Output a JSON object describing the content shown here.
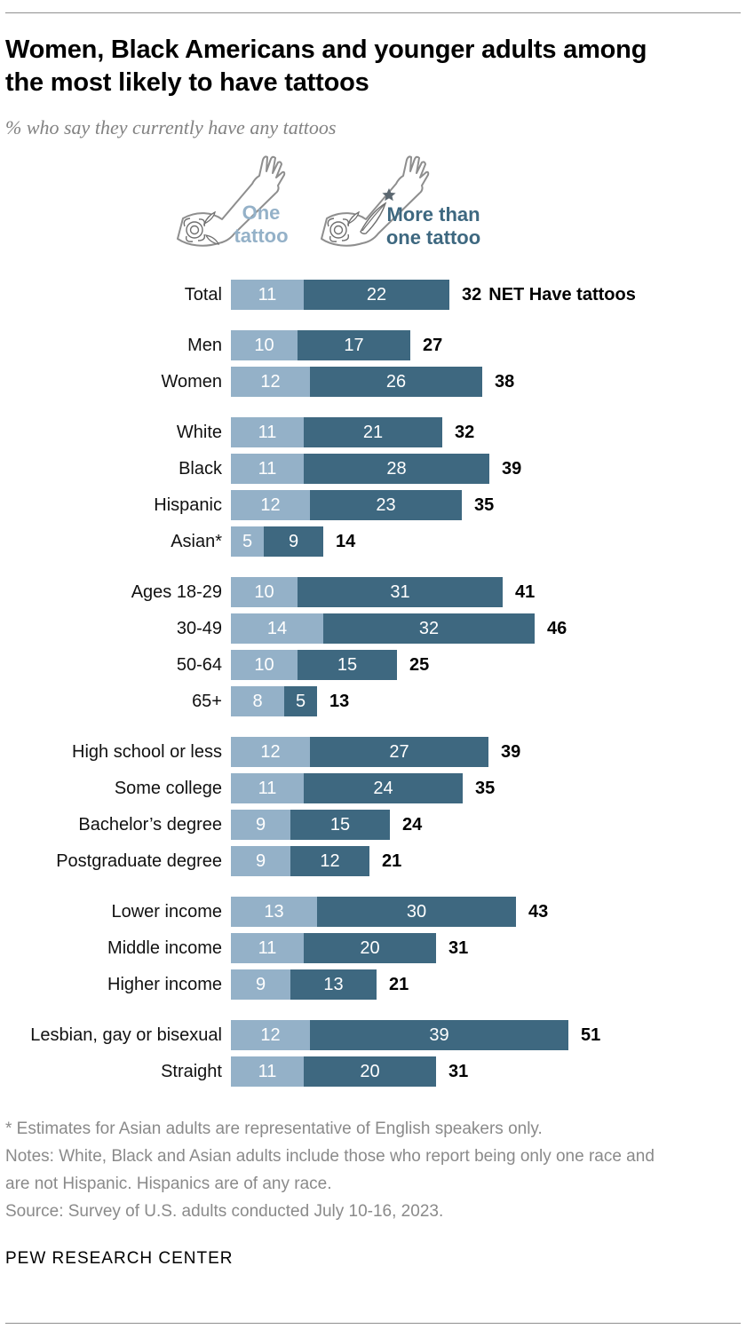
{
  "header": {
    "title_line1": "Women, Black Americans and younger adults among",
    "title_line2": "the most likely to have tattoos",
    "subtitle": "% who say they currently have any tattoos"
  },
  "legend": {
    "one_label": "One tattoo",
    "more_label": "More than one tattoo"
  },
  "chart_data": {
    "type": "bar",
    "orientation": "horizontal",
    "stacked": true,
    "unit": "%",
    "xlim": [
      0,
      55
    ],
    "series": [
      {
        "name": "One tattoo",
        "color": "#94B1C8"
      },
      {
        "name": "More than one tattoo",
        "color": "#3E6880"
      }
    ],
    "groups": [
      {
        "name": "total",
        "rows": [
          {
            "label": "Total",
            "one": 11,
            "more": 22,
            "net": 32,
            "net_suffix": "NET Have tattoos"
          }
        ]
      },
      {
        "name": "gender",
        "rows": [
          {
            "label": "Men",
            "one": 10,
            "more": 17,
            "net": 27
          },
          {
            "label": "Women",
            "one": 12,
            "more": 26,
            "net": 38
          }
        ]
      },
      {
        "name": "race-ethnicity",
        "rows": [
          {
            "label": "White",
            "one": 11,
            "more": 21,
            "net": 32
          },
          {
            "label": "Black",
            "one": 11,
            "more": 28,
            "net": 39
          },
          {
            "label": "Hispanic",
            "one": 12,
            "more": 23,
            "net": 35
          },
          {
            "label": "Asian*",
            "one": 5,
            "more": 9,
            "net": 14
          }
        ]
      },
      {
        "name": "age",
        "rows": [
          {
            "label": "Ages 18-29",
            "one": 10,
            "more": 31,
            "net": 41
          },
          {
            "label": "30-49",
            "one": 14,
            "more": 32,
            "net": 46
          },
          {
            "label": "50-64",
            "one": 10,
            "more": 15,
            "net": 25
          },
          {
            "label": "65+",
            "one": 8,
            "more": 5,
            "net": 13
          }
        ]
      },
      {
        "name": "education",
        "rows": [
          {
            "label": "High school or less",
            "one": 12,
            "more": 27,
            "net": 39
          },
          {
            "label": "Some college",
            "one": 11,
            "more": 24,
            "net": 35
          },
          {
            "label": "Bachelor’s degree",
            "one": 9,
            "more": 15,
            "net": 24
          },
          {
            "label": "Postgraduate degree",
            "one": 9,
            "more": 12,
            "net": 21
          }
        ]
      },
      {
        "name": "income",
        "rows": [
          {
            "label": "Lower income",
            "one": 13,
            "more": 30,
            "net": 43
          },
          {
            "label": "Middle income",
            "one": 11,
            "more": 20,
            "net": 31
          },
          {
            "label": "Higher income",
            "one": 9,
            "more": 13,
            "net": 21
          }
        ]
      },
      {
        "name": "sexual-orientation",
        "rows": [
          {
            "label": "Lesbian, gay or bisexual",
            "one": 12,
            "more": 39,
            "net": 51
          },
          {
            "label": "Straight",
            "one": 11,
            "more": 20,
            "net": 31
          }
        ]
      }
    ]
  },
  "notes": {
    "line1": "* Estimates for Asian adults are representative of English speakers only.",
    "line2": "Notes: White, Black and Asian adults include those who report being only one race and are not Hispanic. Hispanics are of any race.",
    "line3": "Source: Survey of U.S. adults conducted July 10-16, 2023."
  },
  "footer": "PEW RESEARCH CENTER"
}
